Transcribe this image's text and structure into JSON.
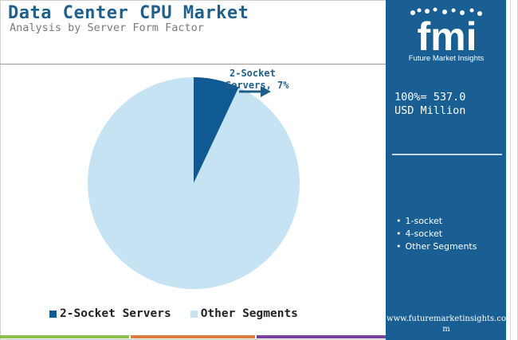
{
  "header": {
    "title": "Data Center CPU Market",
    "subtitle": "Analysis by Server Form Factor"
  },
  "chart_data": {
    "type": "pie",
    "title": "Data Center CPU Market",
    "subtitle": "Analysis by Server Form Factor",
    "slices": [
      {
        "name": "2-Socket Servers",
        "value": 7,
        "color": "#0f5a92",
        "label_line1": "2-Socket",
        "label_line2": "Servers, 7%"
      },
      {
        "name": "Other Segments",
        "value": 93,
        "color": "#c5e3f3"
      }
    ],
    "legend": [
      "2-Socket Servers",
      "Other Segments"
    ],
    "legend_placement": "bottom"
  },
  "sidebar": {
    "logo_text": "fmi",
    "logo_caption": "Future Market Insights",
    "total_line1": "100%= 537.0",
    "total_line2": "USD Million",
    "segments": [
      "1-socket",
      "4-socket",
      "Other Segments"
    ],
    "website": "www.futuremarketinsights.com",
    "background_color": "#1a5f94"
  },
  "bottom_bar_colors": [
    "#8bc34a",
    "#e07a3a",
    "#7b3fa0"
  ]
}
